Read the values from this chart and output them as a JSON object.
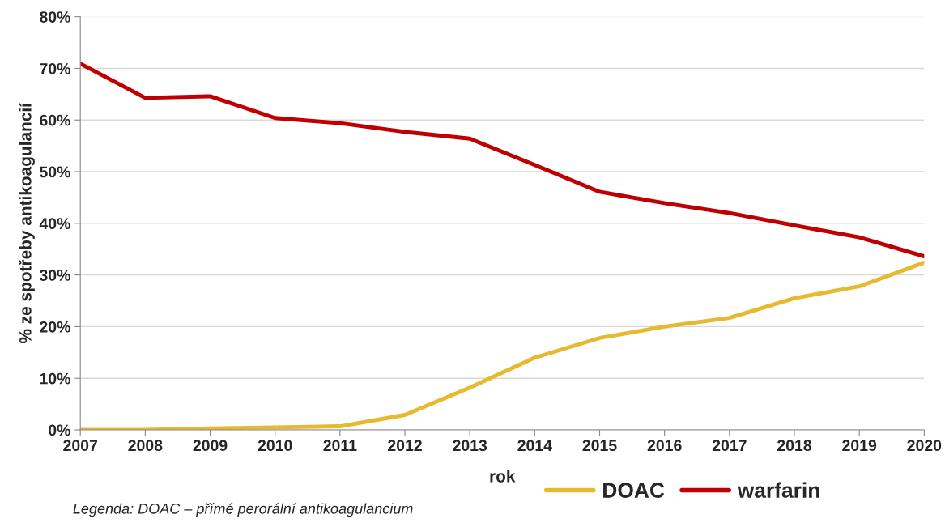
{
  "chart_data": {
    "type": "line",
    "categories": [
      "2007",
      "2008",
      "2009",
      "2010",
      "2011",
      "2012",
      "2013",
      "2014",
      "2015",
      "2016",
      "2017",
      "2018",
      "2019",
      "2020"
    ],
    "series": [
      {
        "name": "DOAC",
        "color": "#e6b92e",
        "values": [
          0,
          0,
          0.3,
          0.5,
          0.7,
          2.9,
          8.2,
          14.0,
          17.8,
          20.0,
          21.7,
          25.5,
          27.8,
          32.4
        ]
      },
      {
        "name": "warfarin",
        "color": "#c00000",
        "values": [
          70.9,
          64.3,
          64.6,
          60.4,
          59.4,
          57.7,
          56.4,
          51.3,
          46.1,
          43.9,
          42.0,
          39.6,
          37.3,
          33.6
        ]
      }
    ],
    "xlabel": "rok",
    "ylabel": "% ze spotřeby antikoagulancií",
    "ylim": [
      0,
      80
    ],
    "yticks": [
      {
        "value": 0,
        "label": "0%"
      },
      {
        "value": 10,
        "label": "10%"
      },
      {
        "value": 20,
        "label": "20%"
      },
      {
        "value": 30,
        "label": "30%"
      },
      {
        "value": 40,
        "label": "40%"
      },
      {
        "value": 50,
        "label": "50%"
      },
      {
        "value": 60,
        "label": "60%"
      },
      {
        "value": 70,
        "label": "70%"
      },
      {
        "value": 80,
        "label": "80%"
      }
    ],
    "grid": "y",
    "legend": "bottom right",
    "marker": "none",
    "line_style": "solid",
    "annotations": [
      "Legenda: DOAC – přímé perorální antikoagulancium"
    ]
  }
}
